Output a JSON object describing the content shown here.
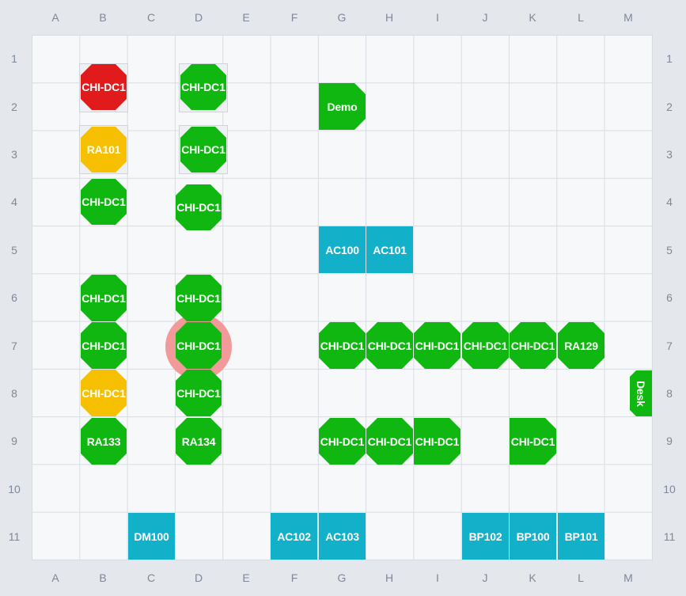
{
  "columns": [
    "A",
    "B",
    "C",
    "D",
    "E",
    "F",
    "G",
    "H",
    "I",
    "J",
    "K",
    "L",
    "M"
  ],
  "rows": [
    "1",
    "2",
    "3",
    "4",
    "5",
    "6",
    "7",
    "8",
    "9",
    "10",
    "11"
  ],
  "colors": {
    "green": "#10b710",
    "red": "#e11b1b",
    "yellow": "#f6c000",
    "teal": "#12b1c9",
    "selection": "#f29a9a"
  },
  "items": [
    {
      "label": "CHI-DC1",
      "color": "red"
    },
    {
      "label": "CHI-DC1",
      "color": "green"
    },
    {
      "label": "Demo",
      "color": "green"
    },
    {
      "label": "RA101",
      "color": "yellow"
    },
    {
      "label": "CHI-DC1",
      "color": "green"
    },
    {
      "label": "CHI-DC1",
      "color": "green"
    },
    {
      "label": "CHI-DC1",
      "color": "green"
    },
    {
      "label": "AC100",
      "color": "teal"
    },
    {
      "label": "AC101",
      "color": "teal"
    },
    {
      "label": "CHI-DC1",
      "color": "green"
    },
    {
      "label": "CHI-DC1",
      "color": "green"
    },
    {
      "label": "CHI-DC1",
      "color": "green"
    },
    {
      "label": "CHI-DC1",
      "color": "green",
      "selected": true
    },
    {
      "label": "CHI-DC1",
      "color": "green"
    },
    {
      "label": "CHI-DC1",
      "color": "green"
    },
    {
      "label": "CHI-DC1",
      "color": "green"
    },
    {
      "label": "CHI-DC1",
      "color": "green"
    },
    {
      "label": "CHI-DC1",
      "color": "green"
    },
    {
      "label": "RA129",
      "color": "green"
    },
    {
      "label": "CHI-DC1",
      "color": "yellow"
    },
    {
      "label": "CHI-DC1",
      "color": "green"
    },
    {
      "label": "Desk",
      "color": "green"
    },
    {
      "label": "RA133",
      "color": "green"
    },
    {
      "label": "RA134",
      "color": "green"
    },
    {
      "label": "CHI-DC1",
      "color": "green"
    },
    {
      "label": "CHI-DC1",
      "color": "green"
    },
    {
      "label": "CHI-DC1",
      "color": "green"
    },
    {
      "label": "CHI-DC1",
      "color": "green"
    },
    {
      "label": "DM100",
      "color": "teal"
    },
    {
      "label": "AC102",
      "color": "teal"
    },
    {
      "label": "AC103",
      "color": "teal"
    },
    {
      "label": "BP102",
      "color": "teal"
    },
    {
      "label": "BP100",
      "color": "teal"
    },
    {
      "label": "BP101",
      "color": "teal"
    }
  ]
}
